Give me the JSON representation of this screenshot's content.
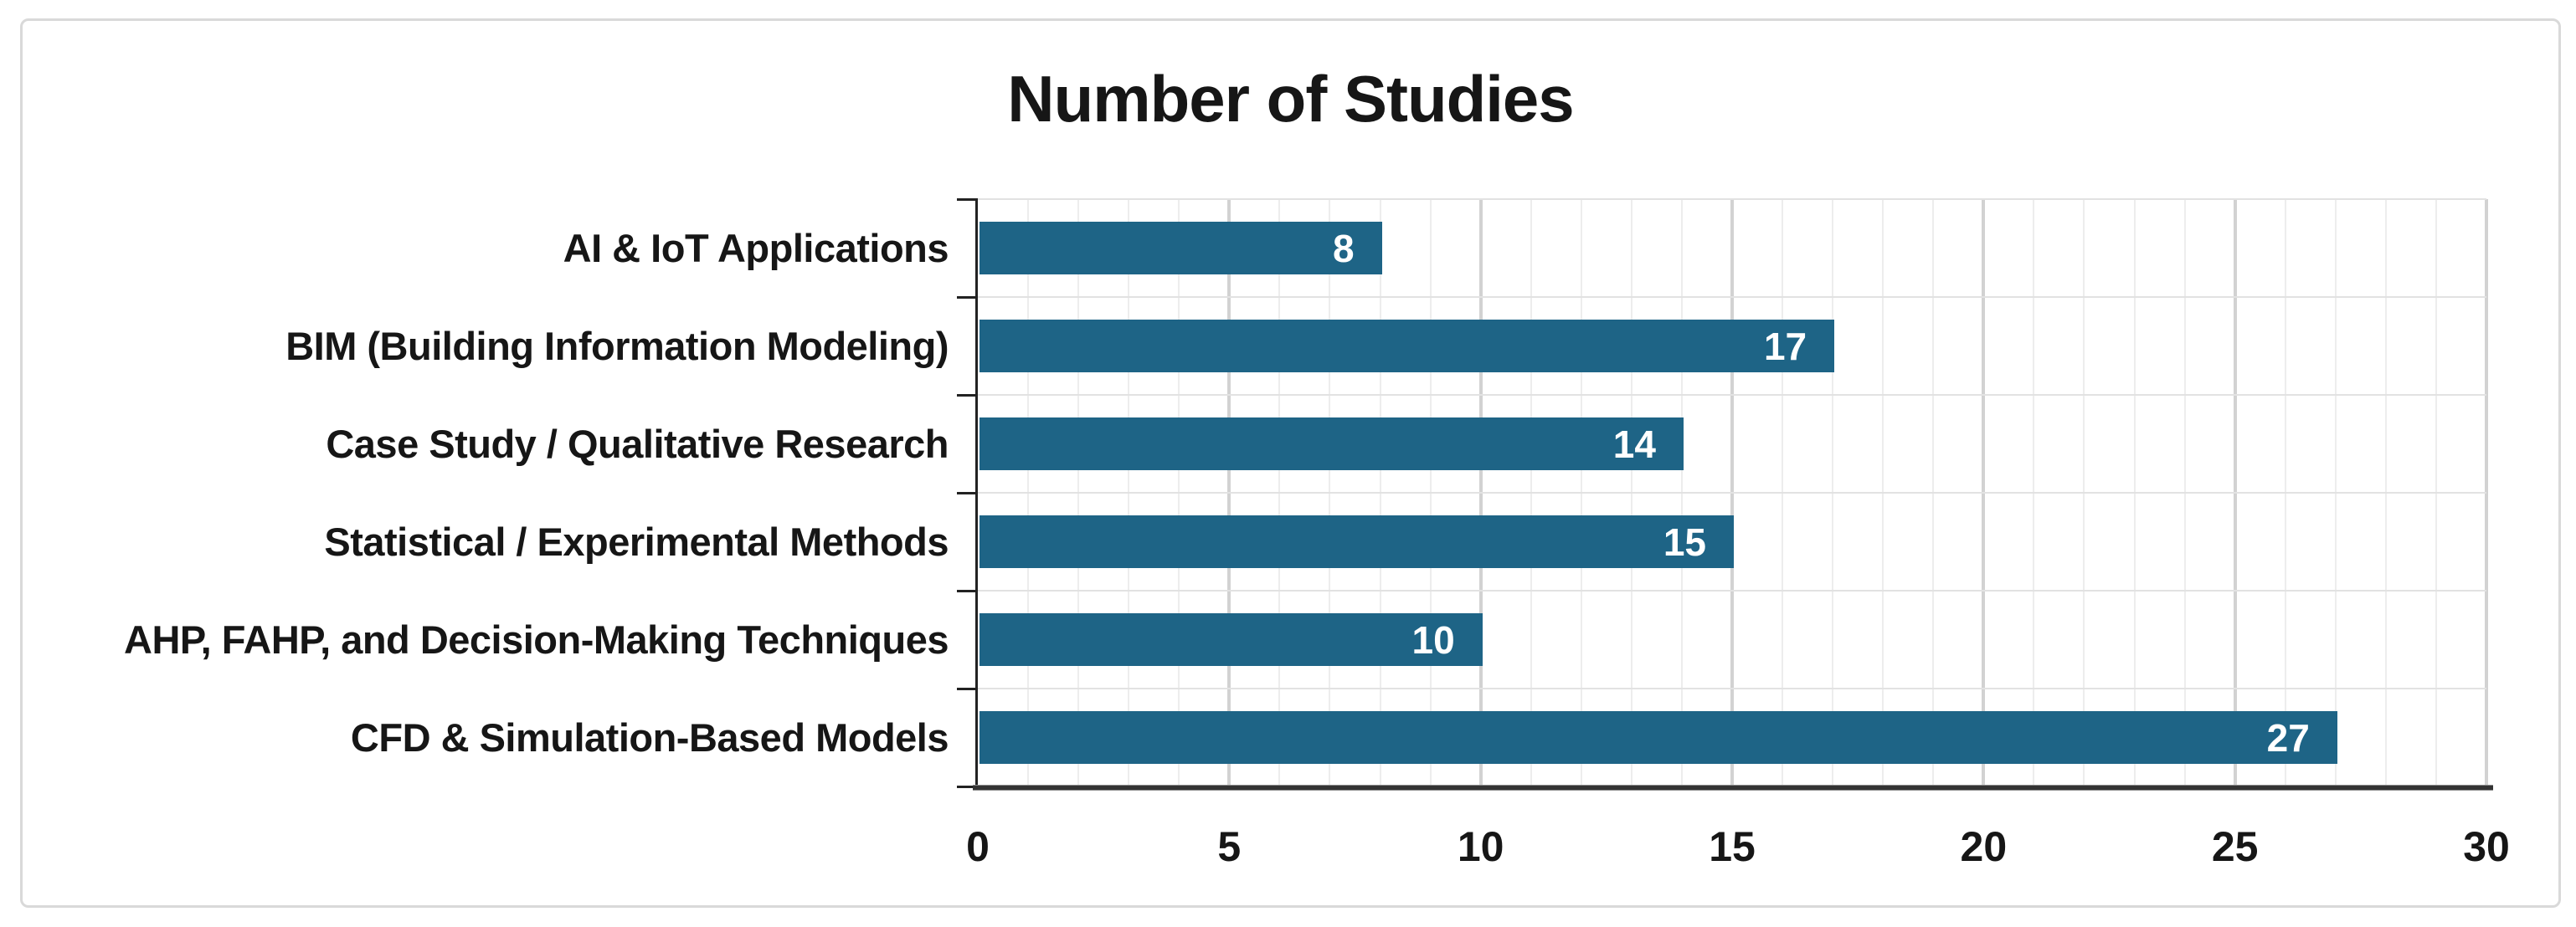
{
  "chart_data": {
    "type": "bar",
    "orientation": "horizontal",
    "title": "Number of Studies",
    "categories": [
      "AI & IoT Applications",
      "BIM (Building Information Modeling)",
      "Case Study / Qualitative Research",
      "Statistical / Experimental Methods",
      "AHP, FAHP, and Decision-Making Techniques",
      "CFD & Simulation-Based Models"
    ],
    "values": [
      8,
      17,
      14,
      15,
      10,
      27
    ],
    "xlabel": "",
    "ylabel": "",
    "xlim": [
      0,
      30
    ],
    "x_ticks": [
      0,
      5,
      10,
      15,
      20,
      25,
      30
    ],
    "x_minor_unit": 1,
    "x_major_unit": 5,
    "grid": "vertical major + minor, horizontal row lines",
    "legend": "none",
    "data_labels": "inside-end, white, bold",
    "colors": {
      "bar": "#1e6486",
      "data_label": "#ffffff",
      "text": "#161616",
      "grid_minor": "#ededed",
      "grid_major": "#d2d2d2",
      "grid_row": "#e2e2e2",
      "axis_y": "#222222",
      "axis_x": "#333333",
      "frame_border": "#d9d9d9",
      "background": "#ffffff"
    }
  }
}
